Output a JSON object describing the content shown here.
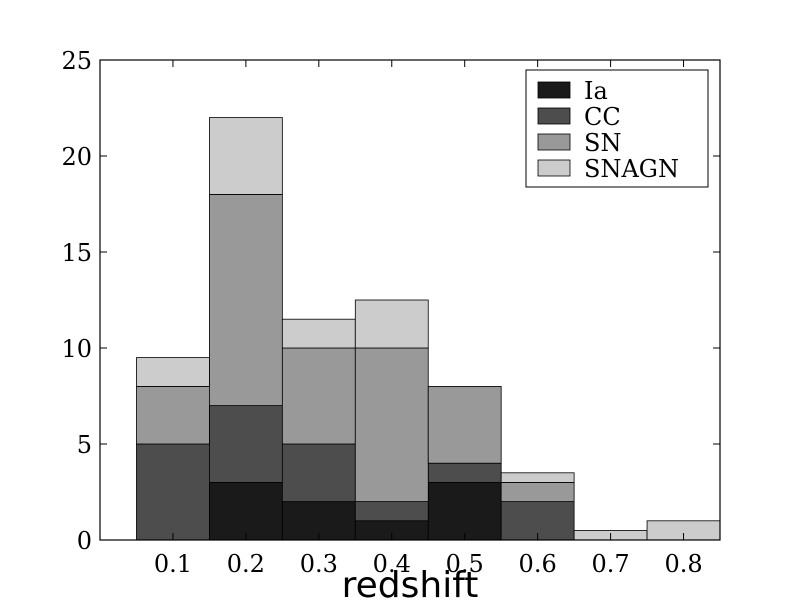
{
  "chart_data": {
    "type": "bar",
    "stacked": true,
    "xlabel": "redshift",
    "ylabel": "",
    "xlim": [
      0.0,
      0.85
    ],
    "ylim": [
      0,
      25
    ],
    "xticks": [
      "0.1",
      "0.2",
      "0.3",
      "0.4",
      "0.5",
      "0.6",
      "0.7",
      "0.8"
    ],
    "yticks": [
      "0",
      "5",
      "10",
      "15",
      "20",
      "25"
    ],
    "bin_edges": [
      0.05,
      0.15,
      0.25,
      0.35,
      0.45,
      0.55,
      0.65,
      0.75,
      0.85
    ],
    "grid": false,
    "legend_position": "top-right",
    "series": [
      {
        "name": "Ia",
        "color": "#1a1a1a",
        "values": [
          0,
          3,
          2,
          1,
          3,
          0,
          0,
          0
        ]
      },
      {
        "name": "CC",
        "color": "#4d4d4d",
        "values": [
          5,
          4,
          3,
          1,
          1,
          2,
          0,
          0
        ]
      },
      {
        "name": "SN",
        "color": "#999999",
        "values": [
          3,
          11,
          5,
          8,
          4,
          1,
          0,
          0
        ]
      },
      {
        "name": "SNAGN",
        "color": "#cccccc",
        "values": [
          1.5,
          4,
          1.5,
          2.5,
          0,
          0.5,
          0.5,
          1
        ]
      }
    ]
  }
}
